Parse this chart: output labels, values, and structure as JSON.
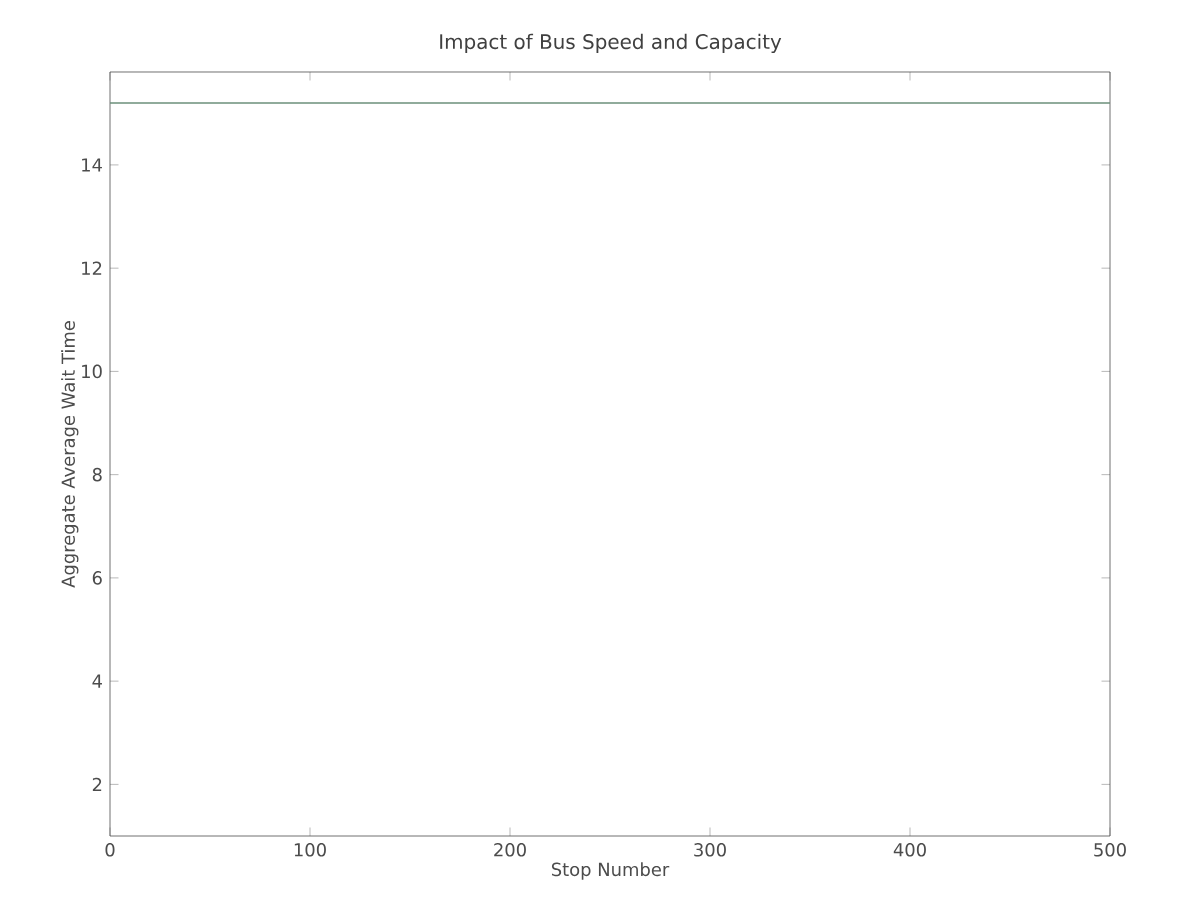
{
  "chart_data": {
    "type": "line",
    "title": "Impact of Bus Speed and Capacity",
    "xlabel": "Stop Number",
    "ylabel": "Aggregate Average Wait Time",
    "x": [
      0,
      500
    ],
    "series": [
      {
        "color": "#6b8f7a",
        "values": [
          15.2,
          15.2
        ]
      }
    ],
    "xlim": [
      0,
      500
    ],
    "ylim": [
      1,
      15.8
    ],
    "xticks": [
      0,
      100,
      200,
      300,
      400,
      500
    ],
    "yticks": [
      2,
      4,
      6,
      8,
      10,
      12,
      14
    ],
    "grid": false,
    "marker": "none",
    "line_style": "solid"
  }
}
